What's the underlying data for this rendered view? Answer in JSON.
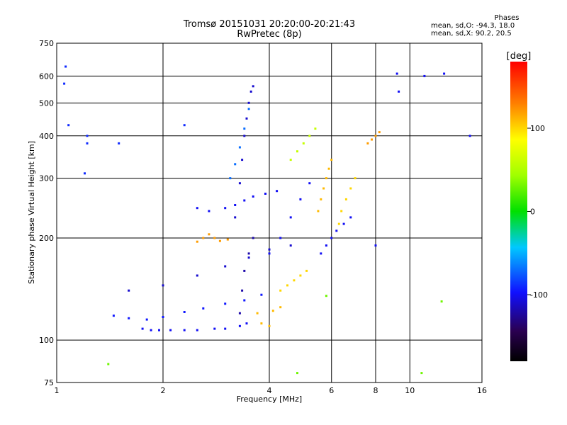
{
  "title": "Tromsø 20151031 20:20:00-20:21:43",
  "subtitle": "RwPretec (8p)",
  "phases": {
    "header": "Phases",
    "line_o": "mean, sd,O: -94.3, 18.0",
    "line_x": "mean, sd,X:  90.2, 20.5"
  },
  "chart_data": {
    "type": "scatter",
    "xlabel": "Frequency [MHz]",
    "ylabel": "Stationary phase Virtual Height [km]",
    "xscale": "log",
    "yscale": "log",
    "xlim": [
      1,
      16
    ],
    "ylim": [
      75,
      750
    ],
    "xticks": [
      1,
      2,
      4,
      6,
      8,
      10,
      16
    ],
    "yticks": [
      75,
      100,
      200,
      300,
      400,
      500,
      600,
      750
    ],
    "grid": true,
    "colorbar": {
      "label": "[deg]",
      "range": [
        -180,
        180
      ],
      "ticks": [
        -100,
        0,
        100
      ]
    },
    "point_color_encoding": "phase",
    "series": [
      {
        "x": [
          1.06,
          1.05,
          1.08,
          1.22,
          1.22,
          1.2,
          1.5,
          2.3
        ],
        "y": [
          640,
          570,
          430,
          400,
          380,
          310,
          380,
          430
        ],
        "c": -90
      },
      {
        "x": [
          1.75,
          1.85,
          1.95,
          2.1,
          2.3,
          2.5,
          2.8,
          3.0,
          3.3,
          3.45
        ],
        "y": [
          108,
          107,
          107,
          107,
          107,
          107,
          108,
          108,
          110,
          112
        ],
        "c": -100
      },
      {
        "x": [
          1.45,
          1.6,
          1.8,
          2.0,
          2.3,
          2.6,
          3.0,
          3.4,
          3.8
        ],
        "y": [
          118,
          116,
          115,
          117,
          121,
          124,
          128,
          131,
          136
        ],
        "c": -95
      },
      {
        "x": [
          1.6,
          2.0,
          2.5,
          3.0,
          3.5,
          4.0,
          4.6
        ],
        "y": [
          140,
          145,
          155,
          165,
          175,
          185,
          190
        ],
        "c": -110
      },
      {
        "x": [
          2.5,
          2.6,
          2.7,
          2.8,
          2.9,
          3.05
        ],
        "y": [
          195,
          200,
          205,
          200,
          196,
          198
        ],
        "c": 120
      },
      {
        "x": [
          2.5,
          2.7,
          3.0,
          3.2,
          3.4,
          3.6,
          3.9,
          4.2
        ],
        "y": [
          245,
          240,
          245,
          250,
          258,
          265,
          270,
          275
        ],
        "c": -100
      },
      {
        "x": [
          3.2,
          3.3,
          3.35,
          3.4,
          3.45,
          3.5,
          3.55,
          3.6
        ],
        "y": [
          230,
          290,
          340,
          400,
          450,
          500,
          540,
          560
        ],
        "c": -110
      },
      {
        "x": [
          3.3,
          3.35,
          3.4,
          3.5,
          3.6
        ],
        "y": [
          120,
          140,
          160,
          180,
          200
        ],
        "c": -120
      },
      {
        "x": [
          3.1,
          3.2,
          3.3,
          3.4,
          3.5
        ],
        "y": [
          300,
          330,
          370,
          420,
          480
        ],
        "c": -70
      },
      {
        "x": [
          3.7,
          3.8,
          4.0,
          4.1,
          4.3
        ],
        "y": [
          120,
          112,
          110,
          122,
          125
        ],
        "c": 110
      },
      {
        "x": [
          4.0,
          4.3,
          4.6,
          4.9,
          5.2
        ],
        "y": [
          180,
          200,
          230,
          260,
          290
        ],
        "c": -100
      },
      {
        "x": [
          4.3,
          4.5,
          4.7,
          4.9,
          5.1
        ],
        "y": [
          140,
          145,
          150,
          155,
          160
        ],
        "c": 100
      },
      {
        "x": [
          4.6,
          4.8,
          5.0,
          5.2,
          5.4
        ],
        "y": [
          340,
          360,
          380,
          400,
          420
        ],
        "c": 60
      },
      {
        "x": [
          5.5,
          5.6,
          5.7,
          5.8,
          5.9,
          6.0
        ],
        "y": [
          240,
          260,
          280,
          300,
          320,
          340
        ],
        "c": 110
      },
      {
        "x": [
          5.6,
          5.8,
          6.0,
          6.2,
          6.5,
          6.8
        ],
        "y": [
          180,
          190,
          200,
          210,
          220,
          230
        ],
        "c": -100
      },
      {
        "x": [
          6.3,
          6.4,
          6.6,
          6.8,
          7.0
        ],
        "y": [
          220,
          240,
          260,
          280,
          300
        ],
        "c": 100
      },
      {
        "x": [
          7.6,
          7.8,
          8.0,
          8.2
        ],
        "y": [
          380,
          390,
          400,
          410
        ],
        "c": 120
      },
      {
        "x": [
          8.0,
          9.2,
          9.3,
          11.0,
          12.5,
          14.8
        ],
        "y": [
          190,
          610,
          540,
          600,
          610,
          400
        ],
        "c": -100
      },
      {
        "x": [
          1.4,
          4.8,
          5.8,
          10.8,
          12.3
        ],
        "y": [
          85,
          80,
          135,
          80,
          130
        ],
        "c": 30
      }
    ]
  }
}
